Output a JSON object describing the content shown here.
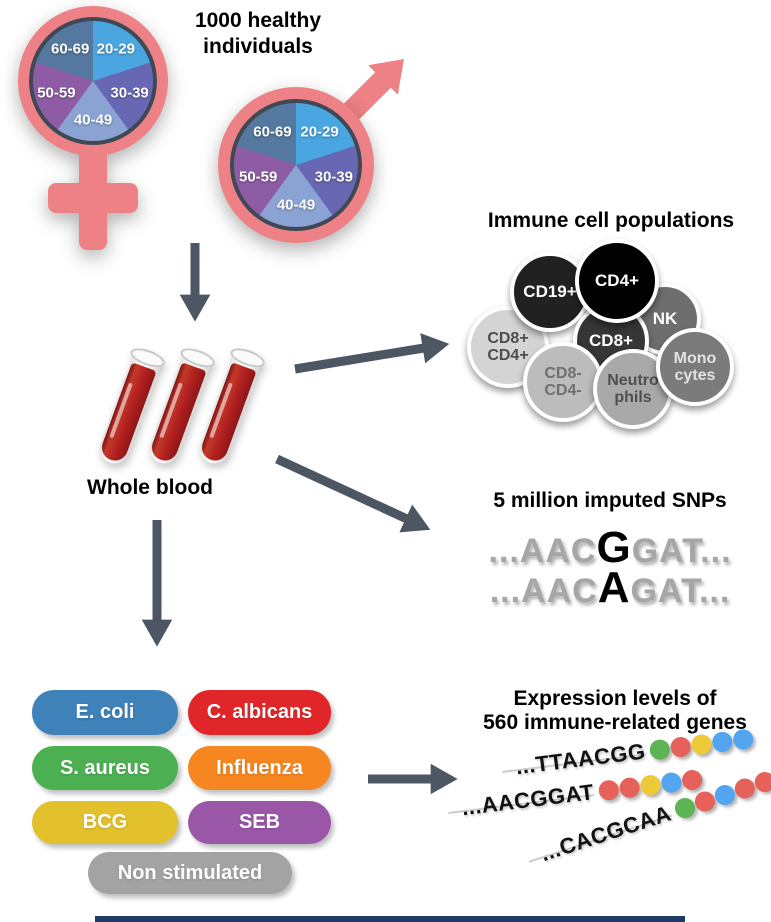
{
  "colors": {
    "symbol_pink": "#ee8185",
    "arrow": "#4d5763",
    "bottom_bar": "#203864"
  },
  "header": {
    "title_line1": "1000 healthy",
    "title_line2": "individuals"
  },
  "age_pie": {
    "labels": [
      "20-29",
      "30-39",
      "40-49",
      "50-59",
      "60-69"
    ],
    "colors": [
      "#49a6e1",
      "#6867b3",
      "#8aa3d3",
      "#8d5ca5",
      "#54789f"
    ]
  },
  "whole_blood": {
    "label": "Whole blood"
  },
  "immune": {
    "title": "Immune cell populations",
    "cells": [
      {
        "lines": [
          "CD8+",
          "CD4+"
        ],
        "bg": "#d4d4d4",
        "fg": "#4d4d4d"
      },
      {
        "lines": [
          "CD19+"
        ],
        "bg": "#212121",
        "fg": "#ffffff"
      },
      {
        "lines": [
          "NK"
        ],
        "bg": "#6e6e6e",
        "fg": "#ffffff"
      },
      {
        "lines": [
          "CD8+"
        ],
        "bg": "#363636",
        "fg": "#ffffff"
      },
      {
        "lines": [
          "CD4+"
        ],
        "bg": "#000000",
        "fg": "#ffffff"
      },
      {
        "lines": [
          "CD8-",
          "CD4-"
        ],
        "bg": "#bcbcbc",
        "fg": "#6f6f6f"
      },
      {
        "lines": [
          "Neutro",
          "phils"
        ],
        "bg": "#a9a9a9",
        "fg": "#4f4f4f"
      },
      {
        "lines": [
          "Mono",
          "cytes"
        ],
        "bg": "#7b7b7b",
        "fg": "#e3e3e3"
      }
    ]
  },
  "snps": {
    "title": "5 million imputed SNPs",
    "lines": [
      {
        "pre": "...AAC",
        "variant": "G",
        "post": "GAT..."
      },
      {
        "pre": "...AAC",
        "variant": "A",
        "post": "GAT..."
      }
    ]
  },
  "stimuli": {
    "items": [
      {
        "label": "E. coli",
        "color": "#3f81b9"
      },
      {
        "label": "C. albicans",
        "color": "#e12629"
      },
      {
        "label": "S. aureus",
        "color": "#4cb052"
      },
      {
        "label": "Influenza",
        "color": "#f6861f"
      },
      {
        "label": "BCG",
        "color": "#e2c12d"
      },
      {
        "label": "SEB",
        "color": "#9b57a7"
      },
      {
        "label": "Non stimulated",
        "color": "#a3a3a3"
      }
    ]
  },
  "expression": {
    "title_line1": "Expression levels of",
    "title_line2": "560 immune-related genes",
    "dot_palette": {
      "green": "#5cb454",
      "red": "#e6615a",
      "yellow": "#eec938",
      "blue": "#52a5ee"
    },
    "rows": [
      {
        "seq": "...TTAACGG",
        "dots": [
          "green",
          "red",
          "yellow",
          "blue",
          "blue"
        ]
      },
      {
        "seq": "...AACGGAT",
        "dots": [
          "red",
          "red",
          "yellow",
          "blue",
          "red"
        ]
      },
      {
        "seq": "...CACGCAA",
        "dots": [
          "green",
          "red",
          "blue",
          "red",
          "red"
        ]
      }
    ]
  }
}
